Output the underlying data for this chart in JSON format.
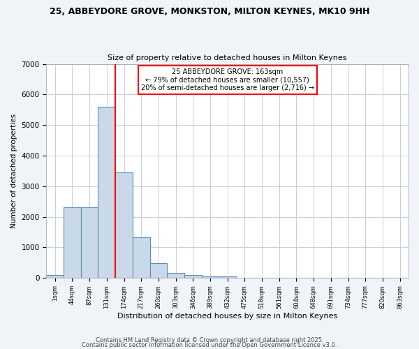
{
  "title": "25, ABBEYDORE GROVE, MONKSTON, MILTON KEYNES, MK10 9HH",
  "subtitle": "Size of property relative to detached houses in Milton Keynes",
  "xlabel": "Distribution of detached houses by size in Milton Keynes",
  "ylabel": "Number of detached properties",
  "bar_labels": [
    "1sqm",
    "44sqm",
    "87sqm",
    "131sqm",
    "174sqm",
    "217sqm",
    "260sqm",
    "303sqm",
    "346sqm",
    "389sqm",
    "432sqm",
    "475sqm",
    "518sqm",
    "561sqm",
    "604sqm",
    "648sqm",
    "691sqm",
    "734sqm",
    "777sqm",
    "820sqm",
    "863sqm"
  ],
  "bar_values": [
    100,
    2300,
    2300,
    5600,
    3450,
    1320,
    480,
    175,
    100,
    60,
    40,
    15,
    8,
    4,
    2,
    1,
    1,
    0,
    0,
    0,
    0
  ],
  "bar_color": "#c9d9e8",
  "bar_edge_color": "#5a8fc0",
  "annotation_title": "25 ABBEYDORE GROVE: 163sqm",
  "annotation_line1": "← 79% of detached houses are smaller (10,557)",
  "annotation_line2": "20% of semi-detached houses are larger (2,716) →",
  "ylim": [
    0,
    7000
  ],
  "yticks": [
    0,
    1000,
    2000,
    3000,
    4000,
    5000,
    6000,
    7000
  ],
  "footer1": "Contains HM Land Registry data © Crown copyright and database right 2025.",
  "footer2": "Contains public sector information licensed under the Open Government Licence v3.0.",
  "bg_color": "#f0f4f8",
  "plot_bg_color": "#ffffff",
  "red_line_x": 4
}
